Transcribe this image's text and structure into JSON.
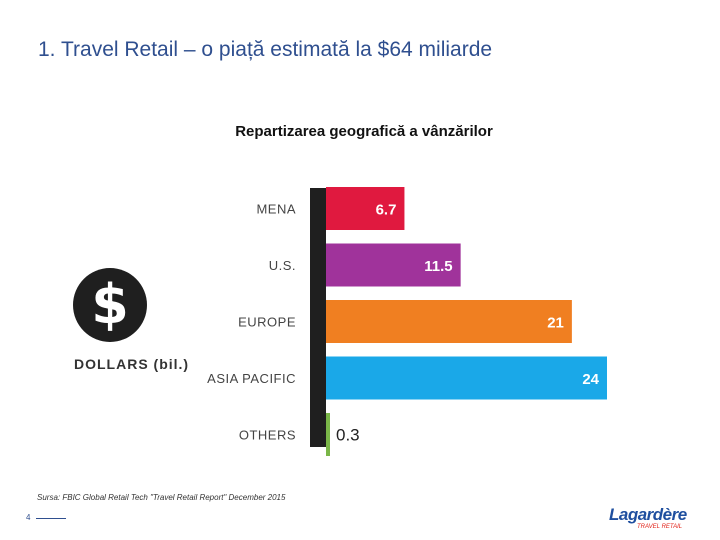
{
  "header": {
    "title": "1. Travel Retail – o piață estimată la $64 miliarde"
  },
  "chart_data": {
    "type": "bar",
    "orientation": "horizontal",
    "title": "Repartizarea geografică a vânzărilor",
    "categories": [
      "MENA",
      "U.S.",
      "EUROPE",
      "ASIA PACIFIC",
      "OTHERS"
    ],
    "values": [
      6.7,
      11.5,
      21,
      24,
      0.3
    ],
    "value_labels": [
      "6.7",
      "11.5",
      "21",
      "24",
      "0.3"
    ],
    "colors": [
      "#e0193f",
      "#a0339b",
      "#f07f21",
      "#1aa8e8",
      "#7ab648"
    ],
    "xlim": [
      0,
      24
    ],
    "unit_label": "DOLLARS (bil.)"
  },
  "icon": {
    "name": "dollar-coin-icon",
    "symbol": "$"
  },
  "footer": {
    "source": "Sursa: FBIC Global Retail Tech \"Travel Retail Report\" December 2015",
    "page_number": "4",
    "logo_text": "Lagardère",
    "logo_subtext": "TRAVEL RETAIL"
  }
}
